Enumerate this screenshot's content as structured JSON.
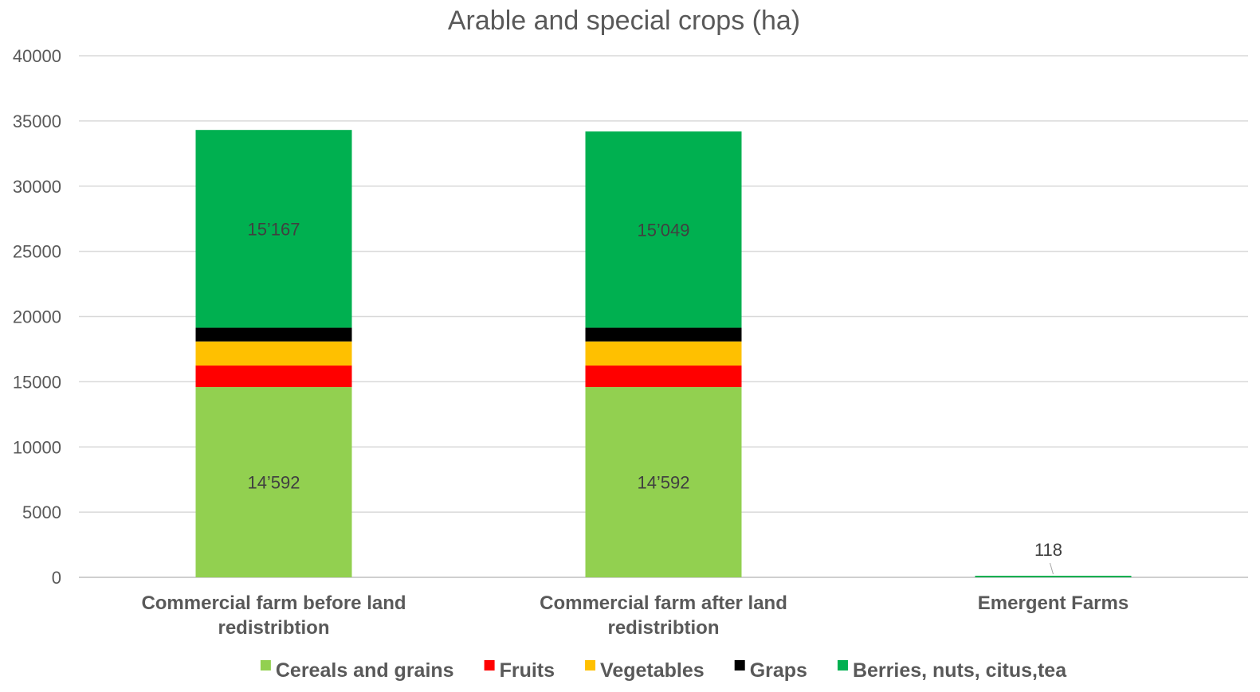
{
  "chart_data": {
    "type": "bar",
    "stacked": true,
    "title": "Arable and special crops (ha)",
    "xlabel": "",
    "ylabel": "",
    "ylim": [
      0,
      40000
    ],
    "yticks": [
      0,
      5000,
      10000,
      15000,
      20000,
      25000,
      30000,
      35000,
      40000
    ],
    "grid": true,
    "legend_position": "bottom",
    "categories": [
      [
        "Commercial farm before land",
        "redistribtion"
      ],
      [
        "Commercial farm after land",
        "redistribtion"
      ],
      [
        "Emergent Farms"
      ]
    ],
    "series": [
      {
        "name": "Cereals and grains",
        "color": "#92D050",
        "values": [
          14592,
          14592,
          0
        ],
        "labels": [
          "14’592",
          "14’592",
          ""
        ]
      },
      {
        "name": "Fruits",
        "color": "#FF0000",
        "values": [
          1650,
          1650,
          0
        ],
        "labels": [
          "",
          "",
          ""
        ]
      },
      {
        "name": "Vegetables",
        "color": "#FFC000",
        "values": [
          1850,
          1850,
          0
        ],
        "labels": [
          "",
          "",
          ""
        ]
      },
      {
        "name": "Graps",
        "color": "#000000",
        "values": [
          1050,
          1050,
          0
        ],
        "labels": [
          "",
          "",
          ""
        ]
      },
      {
        "name": "Berries, nuts, citus,tea",
        "color": "#00B050",
        "values": [
          15167,
          15049,
          118
        ],
        "labels": [
          "15’167",
          "15’049",
          "118"
        ]
      }
    ]
  }
}
